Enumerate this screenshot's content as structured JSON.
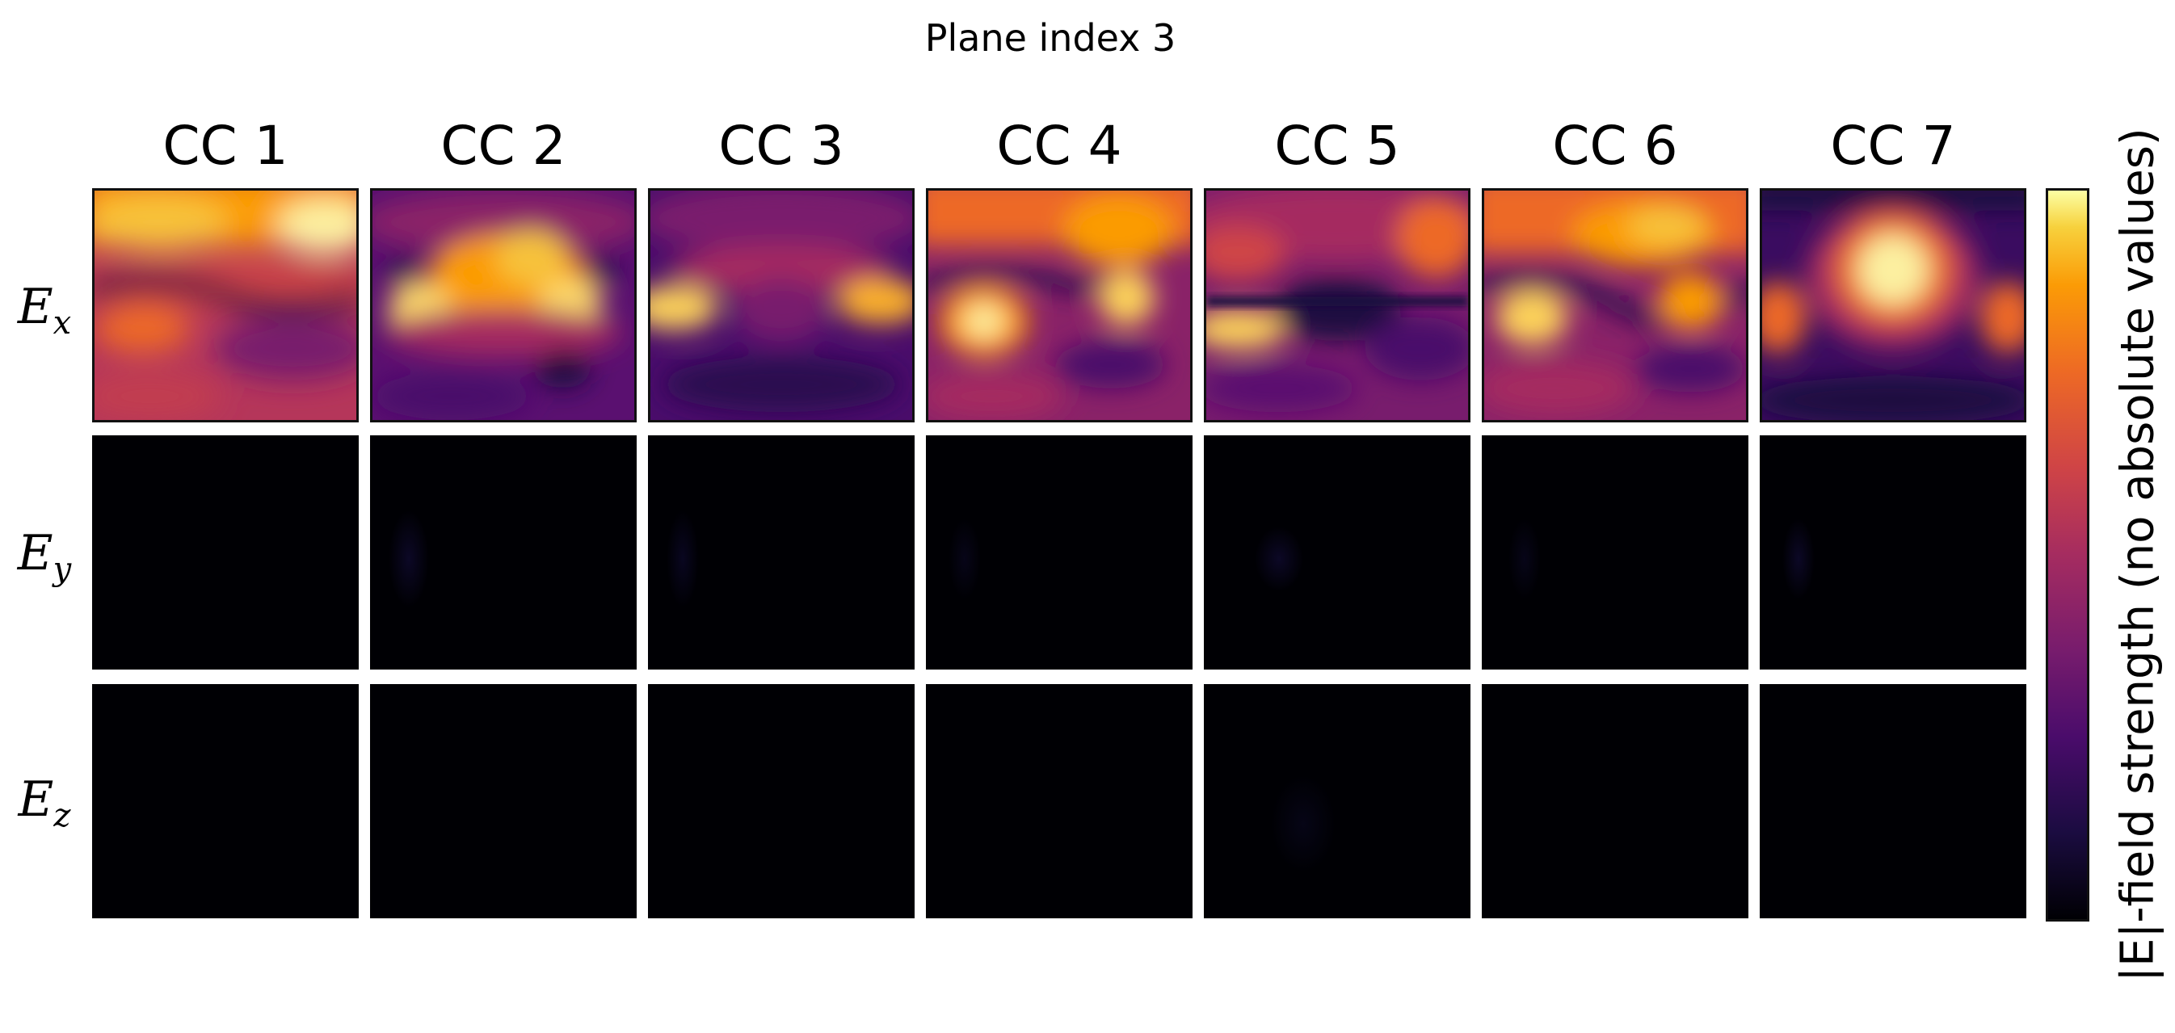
{
  "chart_data": {
    "type": "heatmap",
    "title": "Plane index 3",
    "columns": [
      "CC 1",
      "CC 2",
      "CC 3",
      "CC 4",
      "CC 5",
      "CC 6",
      "CC 7"
    ],
    "rows": [
      "E_x",
      "E_y",
      "E_z"
    ],
    "colorbar_label": "|E|-field strength (no absolute values)",
    "colormap": "inferno",
    "axes_ticks": false,
    "fields": {
      "E_x": "structured field patterns in all seven cells",
      "E_y": "near zero everywhere",
      "E_z": "near zero everywhere"
    }
  },
  "colors": {
    "inferno": [
      "#000004",
      "#1b0c41",
      "#4a0c6b",
      "#781c6d",
      "#a52c60",
      "#cf4446",
      "#ed6925",
      "#fb9b06",
      "#f7d13d",
      "#fcffa4"
    ]
  }
}
